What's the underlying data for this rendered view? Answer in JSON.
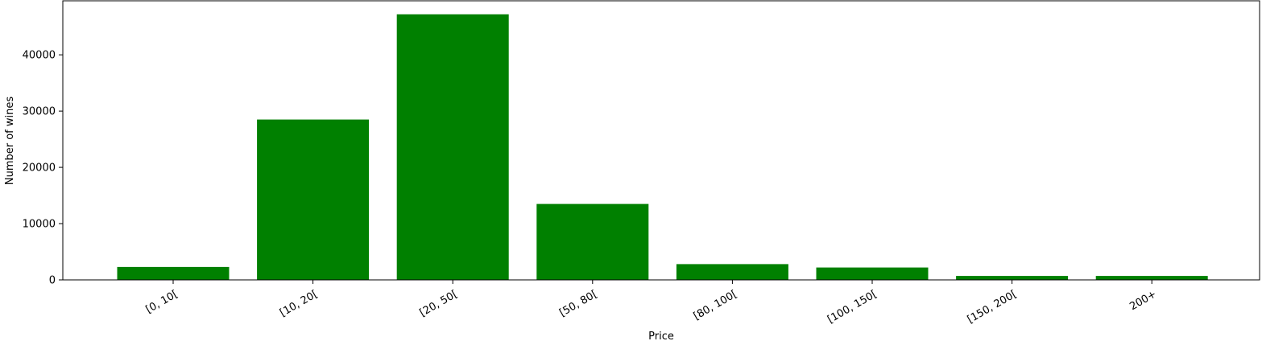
{
  "chart_data": {
    "type": "bar",
    "title": "",
    "xlabel": "Price",
    "ylabel": "Number of wines",
    "categories": [
      "[0, 10[",
      "[10, 20[",
      "[20, 50[",
      "[50, 80[",
      "[80, 100[",
      "[100, 150[",
      "[150, 200[",
      "200+"
    ],
    "values": [
      2300,
      28500,
      47200,
      13500,
      2800,
      2200,
      700,
      700
    ],
    "ylim": [
      0,
      49600
    ],
    "yticks": [
      0,
      10000,
      20000,
      30000,
      40000
    ],
    "ytick_labels": [
      "0",
      "10000",
      "20000",
      "30000",
      "40000"
    ],
    "bar_color": "#008000",
    "grid": false,
    "legend": "none",
    "xtick_rotation": "30 degrees"
  }
}
